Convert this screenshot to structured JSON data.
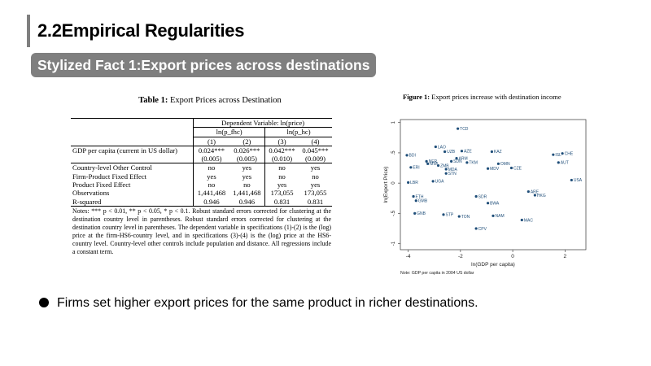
{
  "slide": {
    "title": "2.2Empirical Regularities",
    "fact_label": "Stylized Fact 1:Export prices across destinations",
    "bullet": "Firms set higher export prices for the same product in richer destinations."
  },
  "table": {
    "caption_prefix": "Table 1:",
    "caption": "Export Prices across Destination",
    "dep_header": "Dependent Variable: ln(price)",
    "sub_headers": [
      "ln(p_fhc)",
      "ln(p_hc)"
    ],
    "col_numbers": [
      "(1)",
      "(2)",
      "(3)",
      "(4)"
    ],
    "rows": [
      {
        "label": "GDP per capita (current in US dollar)",
        "values": [
          "0.024***",
          "0.026***",
          "0.042***",
          "0.045***"
        ]
      },
      {
        "label": "",
        "values": [
          "(0.005)",
          "(0.005)",
          "(0.010)",
          "(0.009)"
        ]
      },
      {
        "label": "Country-level Other Control",
        "values": [
          "no",
          "yes",
          "no",
          "yes"
        ]
      },
      {
        "label": "Firm-Product Fixed Effect",
        "values": [
          "yes",
          "yes",
          "no",
          "no"
        ]
      },
      {
        "label": "Product Fixed Effect",
        "values": [
          "no",
          "no",
          "yes",
          "yes"
        ]
      },
      {
        "label": "Observations",
        "values": [
          "1,441,468",
          "1,441,468",
          "173,055",
          "173,055"
        ]
      },
      {
        "label": "R-squared",
        "values": [
          "0.946",
          "0.946",
          "0.831",
          "0.831"
        ]
      }
    ],
    "notes": "Notes: *** p < 0.01, ** p < 0.05, * p < 0.1. Robust standard errors corrected for clustering at the destination country level in parentheses. Robust standard errors corrected for clustering at the destination country level in parentheses. The dependent variable in specifications (1)-(2) is the (log) price at the firm-HS6-country level, and in specifications (3)-(4) is the (log) price at the HS6-country level. Country-level other controls include population and distance. All regressions include a constant term."
  },
  "figure": {
    "caption_prefix": "Figure 1:",
    "caption": "Export prices increase with destination income",
    "note": "Note: GDP per capita in 2004 US dollar"
  },
  "chart_data": {
    "type": "scatter",
    "xlabel": "ln(GDP per capita)",
    "ylabel": "ln(Export Price)",
    "xlim": [
      -4.3,
      2.8
    ],
    "ylim": [
      -1.1,
      1.05
    ],
    "xticks": [
      -4,
      -2,
      0,
      2
    ],
    "yticks": [
      -1,
      -0.5,
      0,
      0.5,
      1
    ],
    "ytick_labels": [
      "-1",
      "-.5",
      "0",
      ".5",
      "1"
    ],
    "color": "#1f4e79",
    "labeled_points": [
      {
        "label": "TCD",
        "x": -2.1,
        "y": 0.9
      },
      {
        "label": "LAO",
        "x": -2.95,
        "y": 0.6
      },
      {
        "label": "UZB",
        "x": -2.6,
        "y": 0.52
      },
      {
        "label": "AZE",
        "x": -1.95,
        "y": 0.53
      },
      {
        "label": "KAZ",
        "x": -0.8,
        "y": 0.52
      },
      {
        "label": "BDI",
        "x": -4.05,
        "y": 0.46
      },
      {
        "label": "ARM",
        "x": -2.15,
        "y": 0.41
      },
      {
        "label": "SDN",
        "x": -2.35,
        "y": 0.36
      },
      {
        "label": "TKM",
        "x": -1.75,
        "y": 0.34
      },
      {
        "label": "NER",
        "x": -3.3,
        "y": 0.36
      },
      {
        "label": "MWI",
        "x": -3.25,
        "y": 0.32
      },
      {
        "label": "ZMB",
        "x": -2.85,
        "y": 0.29
      },
      {
        "label": "ERI",
        "x": -3.9,
        "y": 0.26
      },
      {
        "label": "ISL",
        "x": 1.55,
        "y": 0.47
      },
      {
        "label": "CHE",
        "x": 1.9,
        "y": 0.49
      },
      {
        "label": "AUT",
        "x": 1.75,
        "y": 0.34
      },
      {
        "label": "OMN",
        "x": -0.55,
        "y": 0.32
      },
      {
        "label": "MDA",
        "x": -2.55,
        "y": 0.23
      },
      {
        "label": "STN",
        "x": -2.55,
        "y": 0.16
      },
      {
        "label": "MDV",
        "x": -0.95,
        "y": 0.24
      },
      {
        "label": "LBR",
        "x": -4.0,
        "y": 0.01
      },
      {
        "label": "UGA",
        "x": -3.05,
        "y": 0.03
      },
      {
        "label": "GMB",
        "x": -3.7,
        "y": -0.29
      },
      {
        "label": "ETH",
        "x": -3.8,
        "y": -0.22
      },
      {
        "label": "GNB",
        "x": -3.75,
        "y": -0.5
      },
      {
        "label": "STP",
        "x": -2.65,
        "y": -0.52
      },
      {
        "label": "TON",
        "x": -2.05,
        "y": -0.55
      },
      {
        "label": "NAM",
        "x": -0.75,
        "y": -0.54
      },
      {
        "label": "CPV",
        "x": -1.4,
        "y": -0.75
      },
      {
        "label": "MAC",
        "x": 0.35,
        "y": -0.61
      },
      {
        "label": "BWA",
        "x": -0.95,
        "y": -0.33
      },
      {
        "label": "HKG",
        "x": 0.85,
        "y": -0.2
      },
      {
        "label": "ARE",
        "x": 0.6,
        "y": -0.14
      },
      {
        "label": "USA",
        "x": 2.25,
        "y": 0.05
      },
      {
        "label": "SDR",
        "x": -1.4,
        "y": -0.22
      },
      {
        "label": "CZE",
        "x": -0.05,
        "y": 0.25
      }
    ]
  }
}
